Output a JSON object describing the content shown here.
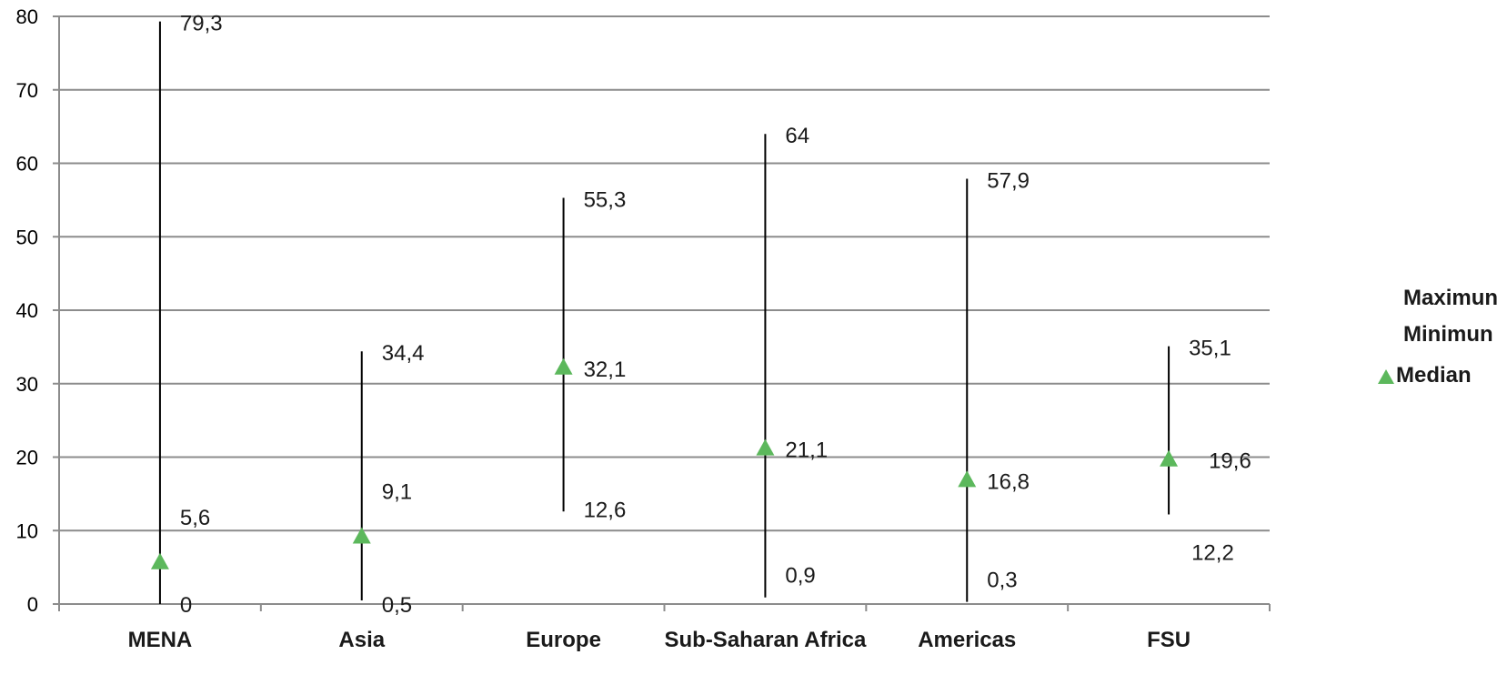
{
  "chart_data": {
    "type": "range-median",
    "categories": [
      "MENA",
      "Asia",
      "Europe",
      "Sub-Saharan Africa",
      "Americas",
      "FSU"
    ],
    "series": [
      {
        "name": "Maximun",
        "values": [
          79.3,
          34.4,
          55.3,
          64,
          57.9,
          35.1
        ],
        "labels": [
          "79,3",
          "34,4",
          "55,3",
          "64",
          "57,9",
          "35,1"
        ]
      },
      {
        "name": "Minimun",
        "values": [
          0,
          0.5,
          12.6,
          0.9,
          0.3,
          12.2
        ],
        "labels": [
          "0",
          "0,5",
          "12,6",
          "0,9",
          "0,3",
          "12,2"
        ]
      },
      {
        "name": "Median",
        "values": [
          5.6,
          9.1,
          32.1,
          21.1,
          16.8,
          19.6
        ],
        "labels": [
          "5,6",
          "9,1",
          "32,1",
          "21,1",
          "16,8",
          "19,6"
        ]
      }
    ],
    "yticks": [
      "0",
      "10",
      "20",
      "30",
      "40",
      "50",
      "60",
      "70",
      "80"
    ],
    "ylim": [
      0,
      80
    ],
    "grid": true,
    "legend_position": "right",
    "median_color": "#5cb85c"
  }
}
